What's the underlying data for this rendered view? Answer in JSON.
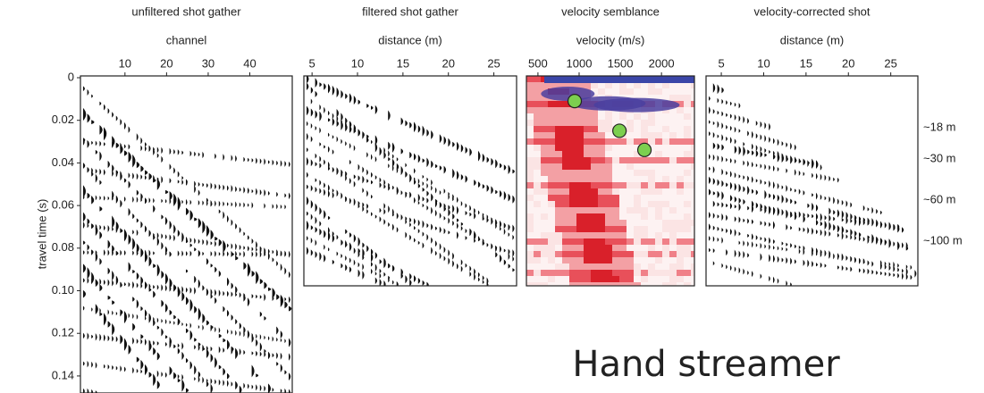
{
  "chart_data": [
    {
      "type": "seismic",
      "title": "unfiltered shot gather",
      "xlabel": "channel",
      "ylabel": "travel time (s)",
      "xlim": [
        -0.7,
        50.2
      ],
      "xticks": [
        10,
        20,
        30,
        40
      ],
      "ylim": [
        0,
        0.148
      ],
      "yticks": [
        0,
        0.02,
        0.04,
        0.06,
        0.08,
        {
          "value": 0.1,
          "label": "0.10"
        },
        0.12,
        0.14
      ]
    },
    {
      "type": "seismic",
      "title": "filtered shot gather",
      "xlabel": "distance (m)",
      "xlim": [
        4.1,
        27.5
      ],
      "xticks": [
        5,
        10,
        15,
        20,
        25
      ],
      "ylim": [
        0,
        0.098
      ]
    },
    {
      "type": "semblance",
      "title": "velocity semblance",
      "xlabel": "velocity (m/s)",
      "xlim": [
        360,
        2400
      ],
      "xticks": [
        500,
        1000,
        1500,
        2000
      ],
      "ylim": [
        0,
        0.098
      ],
      "x": [
        946,
        1490,
        1793
      ],
      "values": [
        0.011,
        0.025,
        0.034
      ],
      "color": "#7ccf4f"
    },
    {
      "type": "corrected",
      "title": "velocity-corrected shot",
      "xlabel": "distance (m)",
      "xlim": [
        3.2,
        28.2
      ],
      "xticks": [
        5,
        10,
        15,
        20,
        25
      ],
      "ylim": [
        0,
        0.098
      ],
      "annotations": [
        "~18 m",
        "~30 m",
        "~60 m",
        "~100 m"
      ]
    }
  ],
  "caption": "Hand streamer"
}
